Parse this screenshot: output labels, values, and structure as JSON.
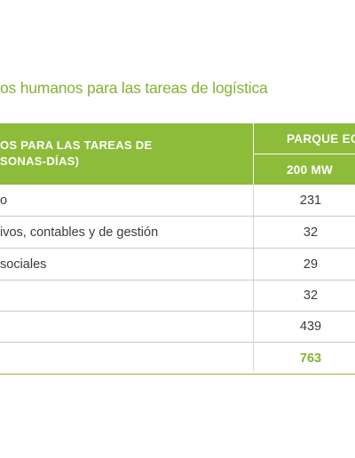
{
  "title": "os humanos para las tareas de logística",
  "header": {
    "col1_line1": "OS PARA LAS TAREAS DE",
    "col1_line2": "SONAS-DÍAS)",
    "col2_title": "PARQUE EO",
    "col2_sub": "200 MW"
  },
  "rows": [
    {
      "label": "o",
      "value": "231"
    },
    {
      "label": "ivos, contables y de gestión",
      "value": "32"
    },
    {
      "label": "sociales",
      "value": "29"
    },
    {
      "label": "",
      "value": "32"
    },
    {
      "label": "",
      "value": "439"
    },
    {
      "label": "",
      "value": "763"
    }
  ],
  "colors": {
    "accent": "#8dbb3a",
    "title": "#84b233",
    "text": "#3b3b3b"
  }
}
